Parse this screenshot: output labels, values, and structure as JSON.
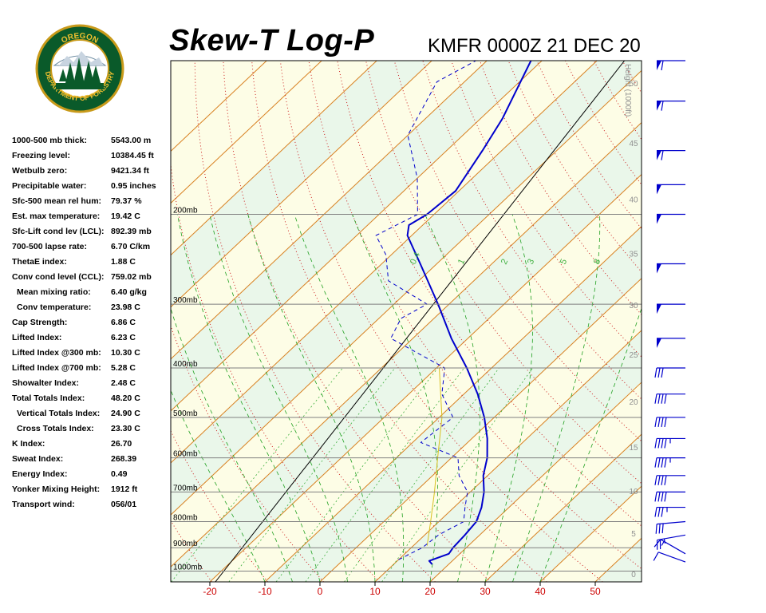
{
  "header": {
    "title": "Skew-T Log-P",
    "station_time": "KMFR 0000Z 21 DEC 20"
  },
  "logo": {
    "text_top": "OREGON",
    "text_bottom": "DEPARTMENT OF FORESTRY"
  },
  "indices": [
    {
      "label": "1000-500 mb thick:",
      "value": "5543.00 m",
      "indent": false
    },
    {
      "label": "Freezing level:",
      "value": "10384.45 ft",
      "indent": false
    },
    {
      "label": "Wetbulb zero:",
      "value": "9421.34 ft",
      "indent": false
    },
    {
      "label": "Precipitable water:",
      "value": "0.95 inches",
      "indent": false
    },
    {
      "label": "Sfc-500 mean rel hum:",
      "value": "79.37 %",
      "indent": false
    },
    {
      "label": "Est. max temperature:",
      "value": "19.42 C",
      "indent": false
    },
    {
      "label": "Sfc-Lift cond lev (LCL):",
      "value": "892.39 mb",
      "indent": false
    },
    {
      "label": "700-500 lapse rate:",
      "value": "6.70 C/km",
      "indent": false
    },
    {
      "label": "ThetaE index:",
      "value": "1.88 C",
      "indent": false
    },
    {
      "label": "Conv cond level (CCL):",
      "value": "759.02 mb",
      "indent": false
    },
    {
      "label": "Mean mixing ratio:",
      "value": "6.40 g/kg",
      "indent": true
    },
    {
      "label": "Conv temperature:",
      "value": "23.98 C",
      "indent": true
    },
    {
      "label": "Cap Strength:",
      "value": "6.86 C",
      "indent": false
    },
    {
      "label": "Lifted Index:",
      "value": "6.23 C",
      "indent": false
    },
    {
      "label": "Lifted Index @300 mb:",
      "value": "10.30 C",
      "indent": false
    },
    {
      "label": "Lifted Index @700 mb:",
      "value": "5.28 C",
      "indent": false
    },
    {
      "label": "Showalter Index:",
      "value": "2.48 C",
      "indent": false
    },
    {
      "label": "Total Totals Index:",
      "value": "48.20 C",
      "indent": false
    },
    {
      "label": "Vertical Totals Index:",
      "value": "24.90 C",
      "indent": true
    },
    {
      "label": "Cross Totals Index:",
      "value": "23.30 C",
      "indent": true
    },
    {
      "label": "K Index:",
      "value": "26.70",
      "indent": false
    },
    {
      "label": "Sweat Index:",
      "value": "268.39",
      "indent": false
    },
    {
      "label": "Energy Index:",
      "value": "0.49",
      "indent": false
    },
    {
      "label": "Yonker Mixing Height:",
      "value": "1912 ft",
      "indent": false
    },
    {
      "label": "Transport wind:",
      "value": "056/01",
      "indent": false
    }
  ],
  "colors": {
    "temperature": "#0000cc",
    "dewpoint": "#0000cc",
    "parcel": "#d8c020",
    "isotherm": "#d88020",
    "dry_adiabat": "#cc2020",
    "moist_adiabat": "#20a020",
    "mixing_ratio": "#40b040",
    "height": "#909090",
    "isobar": "#808080",
    "band_warm": "#fdfde6",
    "band_cool": "#eaf7ea",
    "tick_label": "#cc0000"
  },
  "chart_data": {
    "type": "skew-t",
    "title": "Skew-T Log-P",
    "x_ticks": [
      -20,
      -10,
      0,
      10,
      20,
      30,
      40,
      50
    ],
    "x_tick_labels": [
      "-20",
      "-10",
      "0",
      "10",
      "20",
      "30",
      "40",
      "50"
    ],
    "temperature_range_c": [
      -29,
      56
    ],
    "pressure_range_mb": [
      1050,
      100
    ],
    "isobar_labels": [
      {
        "p": 1000,
        "label": "1000mb"
      },
      {
        "p": 900,
        "label": "900mb"
      },
      {
        "p": 800,
        "label": "800mb"
      },
      {
        "p": 700,
        "label": "700mb"
      },
      {
        "p": 600,
        "label": "600mb"
      },
      {
        "p": 500,
        "label": "500mb"
      },
      {
        "p": 400,
        "label": "400mb"
      },
      {
        "p": 300,
        "label": "300mb"
      },
      {
        "p": 200,
        "label": "200mb"
      }
    ],
    "height_axis_title": "Height (1000ft)",
    "height_ticks_kft": [
      0,
      5,
      10,
      15,
      20,
      25,
      30,
      35,
      40,
      45,
      50
    ],
    "height_tick_labels": [
      "0",
      "5",
      "10",
      "15",
      "20",
      "25",
      "30",
      "35",
      "40",
      "45",
      "50"
    ],
    "mixing_ratio_labels": [
      "0.4",
      "1",
      "2",
      "3",
      "5",
      "8"
    ],
    "mixing_ratio_values_gkg": [
      0.4,
      1,
      2,
      3,
      5,
      8
    ],
    "temperature_profile": [
      {
        "p": 970,
        "t": 17.0
      },
      {
        "p": 955,
        "t": 15.8
      },
      {
        "p": 925,
        "t": 18.0
      },
      {
        "p": 900,
        "t": 17.6
      },
      {
        "p": 850,
        "t": 17.3
      },
      {
        "p": 800,
        "t": 16.8
      },
      {
        "p": 750,
        "t": 15.0
      },
      {
        "p": 700,
        "t": 12.5
      },
      {
        "p": 650,
        "t": 9.2
      },
      {
        "p": 600,
        "t": 6.5
      },
      {
        "p": 550,
        "t": 2.8
      },
      {
        "p": 500,
        "t": -1.8
      },
      {
        "p": 450,
        "t": -7.5
      },
      {
        "p": 400,
        "t": -14.5
      },
      {
        "p": 350,
        "t": -23.0
      },
      {
        "p": 300,
        "t": -32.0
      },
      {
        "p": 250,
        "t": -43.0
      },
      {
        "p": 220,
        "t": -50.8
      },
      {
        "p": 210,
        "t": -52.5
      },
      {
        "p": 200,
        "t": -51.3
      },
      {
        "p": 180,
        "t": -50.6
      },
      {
        "p": 150,
        "t": -53.5
      },
      {
        "p": 130,
        "t": -56.0
      },
      {
        "p": 100,
        "t": -62.0
      }
    ],
    "dewpoint_profile": [
      {
        "p": 950,
        "t": 10.0
      },
      {
        "p": 925,
        "t": 11.0
      },
      {
        "p": 900,
        "t": 12.0
      },
      {
        "p": 850,
        "t": 12.5
      },
      {
        "p": 800,
        "t": 14.5
      },
      {
        "p": 750,
        "t": 12.0
      },
      {
        "p": 700,
        "t": 9.5
      },
      {
        "p": 650,
        "t": 4.8
      },
      {
        "p": 600,
        "t": 1.2
      },
      {
        "p": 560,
        "t": -8.5
      },
      {
        "p": 500,
        "t": -7.5
      },
      {
        "p": 450,
        "t": -14.0
      },
      {
        "p": 400,
        "t": -18.5
      },
      {
        "p": 350,
        "t": -34.0
      },
      {
        "p": 320,
        "t": -36.0
      },
      {
        "p": 300,
        "t": -34.0
      },
      {
        "p": 270,
        "t": -45.5
      },
      {
        "p": 240,
        "t": -51.0
      },
      {
        "p": 220,
        "t": -56.5
      },
      {
        "p": 200,
        "t": -53.0
      },
      {
        "p": 170,
        "t": -60.0
      },
      {
        "p": 140,
        "t": -70.0
      },
      {
        "p": 110,
        "t": -75.0
      },
      {
        "p": 100,
        "t": -72.0
      }
    ],
    "parcel_profile": [
      {
        "p": 892,
        "t": 12.5
      },
      {
        "p": 800,
        "t": 8.5
      },
      {
        "p": 700,
        "t": 3.5
      },
      {
        "p": 600,
        "t": -2.5
      },
      {
        "p": 500,
        "t": -9.5
      },
      {
        "p": 400,
        "t": -19.5
      }
    ],
    "wind_barbs": [
      {
        "p": 960,
        "dir": 200,
        "kt": 10
      },
      {
        "p": 925,
        "dir": 210,
        "kt": 15
      },
      {
        "p": 850,
        "dir": 170,
        "kt": 25
      },
      {
        "p": 800,
        "dir": 175,
        "kt": 30
      },
      {
        "p": 750,
        "dir": 180,
        "kt": 35
      },
      {
        "p": 700,
        "dir": 180,
        "kt": 40
      },
      {
        "p": 650,
        "dir": 180,
        "kt": 40
      },
      {
        "p": 600,
        "dir": 180,
        "kt": 45
      },
      {
        "p": 550,
        "dir": 180,
        "kt": 45
      },
      {
        "p": 500,
        "dir": 180,
        "kt": 40
      },
      {
        "p": 450,
        "dir": 180,
        "kt": 40
      },
      {
        "p": 400,
        "dir": 180,
        "kt": 30
      },
      {
        "p": 350,
        "dir": 180,
        "kt": 50
      },
      {
        "p": 300,
        "dir": 180,
        "kt": 50
      },
      {
        "p": 250,
        "dir": 180,
        "kt": 50
      },
      {
        "p": 200,
        "dir": 180,
        "kt": 50
      },
      {
        "p": 175,
        "dir": 180,
        "kt": 50
      },
      {
        "p": 150,
        "dir": 180,
        "kt": 60
      },
      {
        "p": 120,
        "dir": 180,
        "kt": 60
      },
      {
        "p": 100,
        "dir": 180,
        "kt": 60
      }
    ]
  }
}
